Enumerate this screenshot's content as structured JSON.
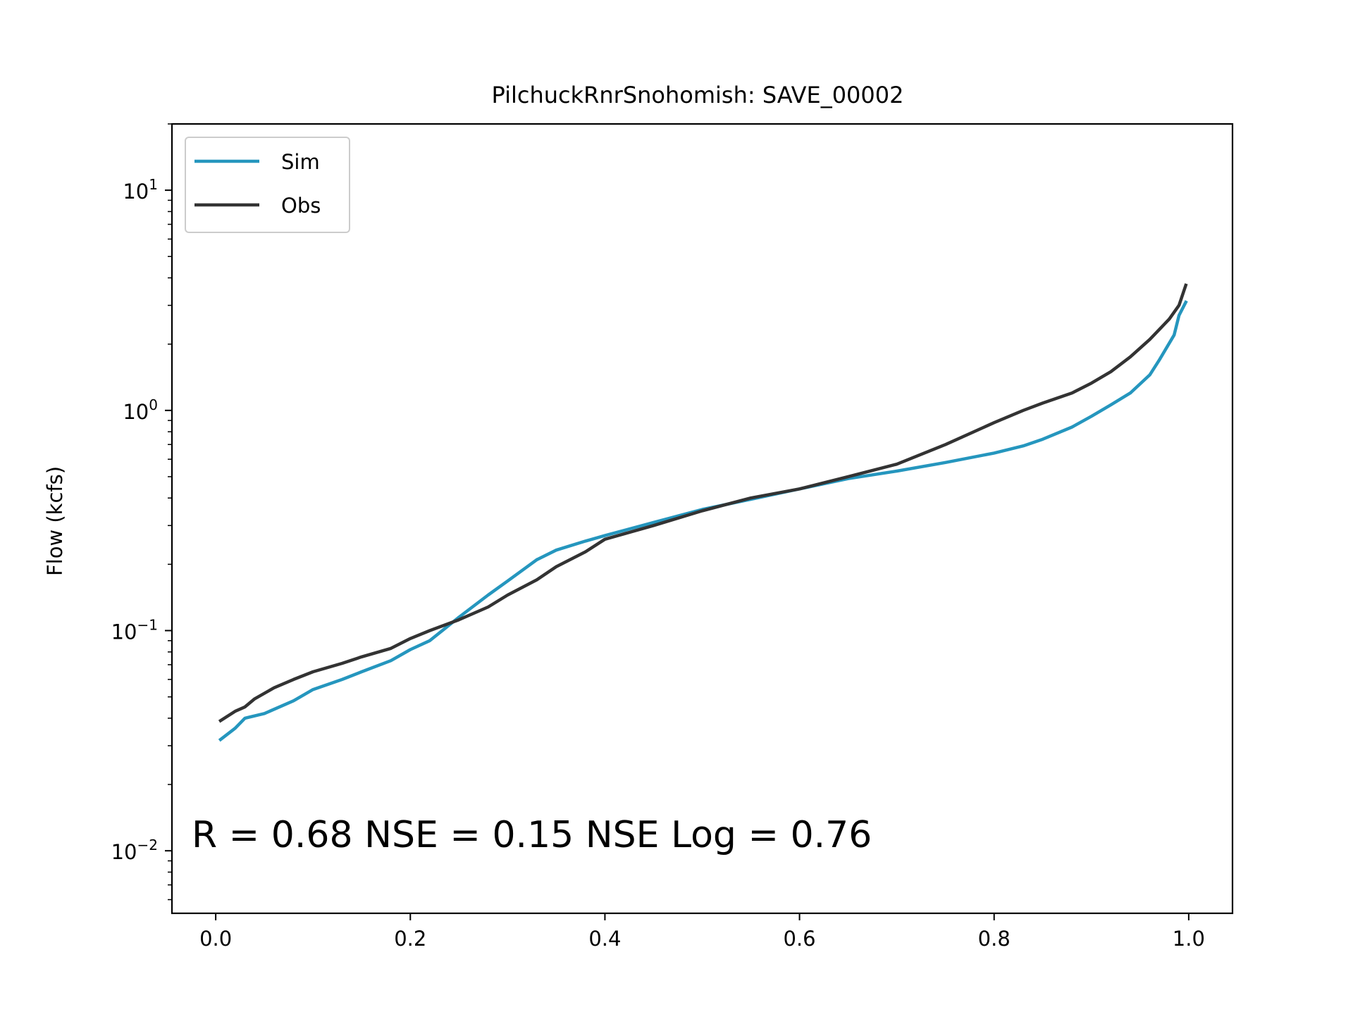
{
  "chart_data": {
    "type": "line",
    "title": "PilchuckRnrSnohomish: SAVE_00002",
    "xlabel": "",
    "ylabel": "Flow (kcfs)",
    "yscale": "log",
    "xlim": [
      -0.045,
      1.045
    ],
    "ylim": [
      0.0052,
      20
    ],
    "xticks": [
      0.0,
      0.2,
      0.4,
      0.6,
      0.8,
      1.0
    ],
    "xtick_labels": [
      "0.0",
      "0.2",
      "0.4",
      "0.6",
      "0.8",
      "1.0"
    ],
    "yticks": [
      0.01,
      0.1,
      1,
      10
    ],
    "ytick_labels": [
      {
        "base": "10",
        "exp": "−2"
      },
      {
        "base": "10",
        "exp": "−1"
      },
      {
        "base": "10",
        "exp": "0"
      },
      {
        "base": "10",
        "exp": "1"
      }
    ],
    "grid": false,
    "legend_position": "top-left",
    "series": [
      {
        "name": "Sim",
        "color": "#2596be",
        "x": [
          0.005,
          0.02,
          0.03,
          0.05,
          0.08,
          0.1,
          0.13,
          0.15,
          0.18,
          0.2,
          0.22,
          0.25,
          0.28,
          0.3,
          0.33,
          0.35,
          0.38,
          0.4,
          0.45,
          0.5,
          0.55,
          0.6,
          0.65,
          0.7,
          0.75,
          0.8,
          0.83,
          0.85,
          0.88,
          0.9,
          0.92,
          0.94,
          0.96,
          0.97,
          0.985,
          0.99,
          0.997
        ],
        "y": [
          0.032,
          0.036,
          0.04,
          0.042,
          0.048,
          0.054,
          0.06,
          0.065,
          0.073,
          0.082,
          0.09,
          0.115,
          0.145,
          0.168,
          0.21,
          0.232,
          0.255,
          0.27,
          0.31,
          0.355,
          0.395,
          0.44,
          0.49,
          0.53,
          0.58,
          0.64,
          0.69,
          0.74,
          0.84,
          0.94,
          1.06,
          1.2,
          1.45,
          1.7,
          2.2,
          2.7,
          3.1
        ]
      },
      {
        "name": "Obs",
        "color": "#333333",
        "x": [
          0.005,
          0.02,
          0.03,
          0.04,
          0.06,
          0.08,
          0.1,
          0.13,
          0.15,
          0.18,
          0.2,
          0.22,
          0.25,
          0.28,
          0.3,
          0.33,
          0.35,
          0.38,
          0.4,
          0.45,
          0.5,
          0.55,
          0.6,
          0.65,
          0.7,
          0.75,
          0.8,
          0.83,
          0.85,
          0.88,
          0.9,
          0.92,
          0.94,
          0.96,
          0.98,
          0.99,
          0.997
        ],
        "y": [
          0.039,
          0.043,
          0.045,
          0.049,
          0.055,
          0.06,
          0.065,
          0.071,
          0.076,
          0.083,
          0.092,
          0.1,
          0.112,
          0.128,
          0.145,
          0.17,
          0.195,
          0.228,
          0.26,
          0.3,
          0.35,
          0.4,
          0.44,
          0.5,
          0.57,
          0.7,
          0.88,
          1.0,
          1.08,
          1.2,
          1.33,
          1.5,
          1.75,
          2.1,
          2.6,
          3.0,
          3.7
        ]
      }
    ],
    "annotation": "R = 0.68  NSE = 0.15  NSE Log = 0.76"
  }
}
